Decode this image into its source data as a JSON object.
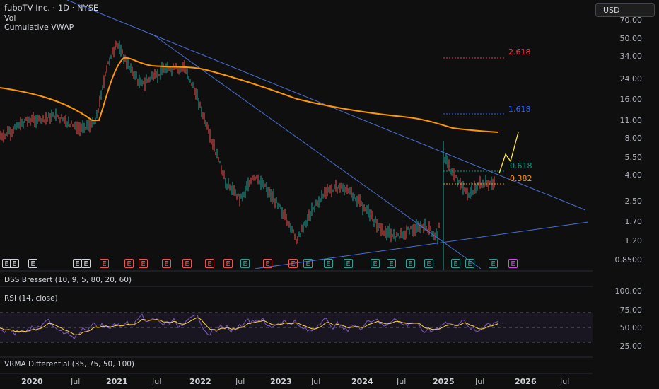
{
  "header": {
    "symbol_line": "fuboTV Inc. · 1D · NYSE",
    "vol_label": "Vol",
    "vwap_label": "Cumulative VWAP"
  },
  "currency_button": "USD",
  "price_axis": [
    "70.00",
    "50.00",
    "34.00",
    "24.00",
    "16.00",
    "11.00",
    "8.00",
    "5.50",
    "4.00",
    "2.50",
    "1.70",
    "1.20",
    "0.8500"
  ],
  "fib_levels": [
    {
      "label": "2.618",
      "color": "#f23645"
    },
    {
      "label": "1.618",
      "color": "#2962ff"
    },
    {
      "label": "0.618",
      "color": "#089981"
    },
    {
      "label": "0.382",
      "color": "#ff9800"
    }
  ],
  "earnings_badge_label": "E",
  "panels": {
    "dss": "DSS Bressert (10, 9, 5, 80, 20, 60)",
    "rsi": "RSI (14, close)",
    "vrma": "VRMA Differential (35, 75, 50, 100)"
  },
  "rsi_axis": [
    "100.00",
    "75.00",
    "50.00",
    "25.00"
  ],
  "time_axis": [
    {
      "label": "2020",
      "bold": true
    },
    {
      "label": "Jul",
      "bold": false
    },
    {
      "label": "2021",
      "bold": true
    },
    {
      "label": "Jul",
      "bold": false
    },
    {
      "label": "2022",
      "bold": true
    },
    {
      "label": "Jul",
      "bold": false
    },
    {
      "label": "2023",
      "bold": true
    },
    {
      "label": "Jul",
      "bold": false
    },
    {
      "label": "2024",
      "bold": true
    },
    {
      "label": "Jul",
      "bold": false
    },
    {
      "label": "2025",
      "bold": true
    },
    {
      "label": "Jul",
      "bold": false
    },
    {
      "label": "2026",
      "bold": true
    },
    {
      "label": "Jul",
      "bold": false
    }
  ],
  "colors": {
    "up": "#26a69a",
    "down": "#ef5350",
    "vwap": "#ff9800",
    "trend": "#4a6fd4",
    "projection": "#ffeb3b",
    "rsi": "#7e57c2",
    "rsi_ma": "#fdd835"
  }
}
